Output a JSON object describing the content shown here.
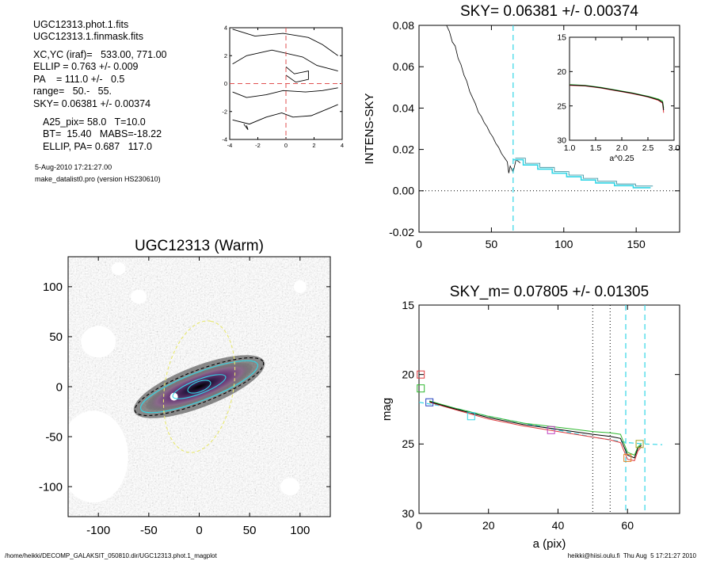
{
  "info": {
    "lines": [
      "UGC12313.phot.1.fits",
      "UGC12313.1.finmask.fits",
      "XC,YC (iraf)=   533.00, 771.00",
      "ELLIP = 0.763 +/- 0.009",
      "PA    = 111.0 +/-   0.5",
      "range=   50.-   55.",
      "SKY= 0.06381 +/- 0.00374"
    ],
    "lines2": [
      "A25_pix= 58.0   T=10.0",
      "BT=  15.40   MABS=-18.22",
      "ELLIP, PA= 0.687   117.0"
    ],
    "date": "5-Aug-2010 17:21:27.00",
    "program": "make_datalist0.pro (version HS230610)"
  },
  "footer": {
    "left": "/home/heikki/DECOMP_GALAKSIT_050810.dir/UGC12313.phot.1_magplot",
    "right": "heikki@hiisi.oulu.fi  Thu Aug  5 17:21:27 2010"
  },
  "colors": {
    "cyan": "#33d6e6",
    "red": "#e0393c",
    "green": "#2fb82f",
    "gray": "#808080",
    "dash_red": "#e05050"
  },
  "chart_data": [
    {
      "id": "contour",
      "type": "line",
      "xlim": [
        -4,
        4
      ],
      "ylim": [
        -4,
        4
      ],
      "xticks": [
        -4,
        -2,
        0,
        2,
        4
      ],
      "yticks": [
        -4,
        -2,
        0,
        2,
        4
      ],
      "tick_labels_x": [
        "-4",
        "-2",
        "0",
        "2",
        "4"
      ],
      "tick_labels_y": [
        "-4",
        "-2",
        "0",
        "2",
        "4"
      ],
      "contours": [
        [
          [
            -3.8,
            3.9
          ],
          [
            -2.2,
            3.4
          ],
          [
            -0.2,
            3.6
          ],
          [
            1.6,
            3.3
          ],
          [
            2.6,
            2.8
          ],
          [
            3.7,
            2.0
          ]
        ],
        [
          [
            -3.8,
            1.4
          ],
          [
            -2.8,
            2.0
          ],
          [
            -1.0,
            2.4
          ],
          [
            1.2,
            1.9
          ],
          [
            2.2,
            1.3
          ],
          [
            3.7,
            0.9
          ]
        ],
        [
          [
            0.0,
            1.2
          ],
          [
            0.6,
            0.7
          ],
          [
            1.6,
            0.9
          ],
          [
            1.6,
            0.3
          ],
          [
            0.7,
            0.1
          ],
          [
            0.0,
            0.6
          ]
        ],
        [
          [
            -3.8,
            -0.6
          ],
          [
            -2.8,
            -1.0
          ],
          [
            -1.4,
            -0.8
          ],
          [
            -0.2,
            -0.5
          ],
          [
            1.4,
            -0.6
          ],
          [
            2.6,
            -0.5
          ],
          [
            3.7,
            -0.3
          ]
        ],
        [
          [
            -3.8,
            -2.6
          ],
          [
            -2.6,
            -2.9
          ],
          [
            -1.4,
            -2.4
          ],
          [
            -0.3,
            -2.1
          ],
          [
            0.5,
            -2.4
          ],
          [
            1.8,
            -2.3
          ],
          [
            3.0,
            -1.8
          ],
          [
            3.7,
            -1.5
          ]
        ],
        [
          [
            -3.0,
            -2.9
          ],
          [
            -2.7,
            -3.3
          ],
          [
            -2.8,
            -3.0
          ]
        ]
      ]
    },
    {
      "id": "sky",
      "type": "line",
      "title": "SKY= 0.06381 +/- 0.00374",
      "ylabel": "INTENS-SKY",
      "xlim": [
        0,
        180
      ],
      "ylim": [
        -0.02,
        0.08
      ],
      "xticks": [
        0,
        50,
        100,
        150
      ],
      "yticks": [
        -0.02,
        0.0,
        0.02,
        0.04,
        0.06,
        0.08
      ],
      "tick_labels_x": [
        "0",
        "50",
        "100",
        "150"
      ],
      "tick_labels_y": [
        "-0.02",
        "0.00",
        "0.02",
        "0.04",
        "0.06",
        "0.08"
      ],
      "profile": [
        [
          19,
          0.08
        ],
        [
          21,
          0.077
        ],
        [
          23,
          0.072
        ],
        [
          25,
          0.07
        ],
        [
          27,
          0.064
        ],
        [
          29,
          0.061
        ],
        [
          31,
          0.056
        ],
        [
          33,
          0.053
        ],
        [
          35,
          0.048
        ],
        [
          37,
          0.045
        ],
        [
          39,
          0.042
        ],
        [
          41,
          0.038
        ],
        [
          43,
          0.036
        ],
        [
          45,
          0.033
        ],
        [
          47,
          0.031
        ],
        [
          49,
          0.028
        ],
        [
          51,
          0.026
        ],
        [
          53,
          0.023
        ],
        [
          55,
          0.021
        ],
        [
          57,
          0.018
        ],
        [
          59,
          0.016
        ],
        [
          61,
          0.014
        ],
        [
          62,
          0.0085
        ],
        [
          63,
          0.012
        ],
        [
          65,
          0.009
        ],
        [
          67,
          0.015
        ],
        [
          70,
          0.0135
        ]
      ],
      "steps": [
        [
          65,
          0.015
        ],
        [
          72,
          0.015
        ],
        [
          72,
          0.0125
        ],
        [
          82,
          0.0125
        ],
        [
          82,
          0.0105
        ],
        [
          92,
          0.0105
        ],
        [
          92,
          0.0085
        ],
        [
          102,
          0.0085
        ],
        [
          102,
          0.0068
        ],
        [
          112,
          0.0068
        ],
        [
          112,
          0.0052
        ],
        [
          122,
          0.0052
        ],
        [
          122,
          0.0038
        ],
        [
          135,
          0.0038
        ],
        [
          135,
          0.0025
        ],
        [
          148,
          0.0025
        ],
        [
          148,
          0.0015
        ],
        [
          160,
          0.0015
        ]
      ],
      "vline_x": 65
    },
    {
      "id": "inset",
      "type": "line",
      "xlabel": "a^0.25",
      "xlim": [
        1.0,
        3.0
      ],
      "ylim": [
        30,
        15
      ],
      "xticks": [
        1.0,
        1.5,
        2.0,
        2.5,
        3.0
      ],
      "yticks": [
        15,
        20,
        25,
        30
      ],
      "tick_labels_x": [
        "1.0",
        "1.5",
        "2.0",
        "2.5",
        "3.0"
      ],
      "tick_labels_y": [
        "15",
        "20",
        "25",
        "30"
      ],
      "series": [
        {
          "color": "green",
          "values": [
            [
              1.0,
              21.9
            ],
            [
              1.3,
              22.0
            ],
            [
              1.6,
              22.3
            ],
            [
              1.9,
              22.7
            ],
            [
              2.2,
              23.1
            ],
            [
              2.5,
              23.6
            ],
            [
              2.7,
              24.0
            ],
            [
              2.78,
              24.3
            ],
            [
              2.8,
              25.3
            ]
          ]
        },
        {
          "color": "red",
          "values": [
            [
              1.0,
              22.0
            ],
            [
              1.3,
              22.1
            ],
            [
              1.6,
              22.4
            ],
            [
              1.9,
              22.8
            ],
            [
              2.2,
              23.2
            ],
            [
              2.5,
              23.7
            ],
            [
              2.7,
              24.2
            ],
            [
              2.78,
              24.6
            ],
            [
              2.8,
              26.0
            ]
          ]
        },
        {
          "color": "black",
          "values": [
            [
              1.0,
              21.95
            ],
            [
              1.3,
              22.05
            ],
            [
              1.6,
              22.35
            ],
            [
              1.9,
              22.75
            ],
            [
              2.2,
              23.15
            ],
            [
              2.5,
              23.65
            ],
            [
              2.7,
              24.1
            ],
            [
              2.78,
              24.5
            ],
            [
              2.8,
              25.6
            ]
          ]
        }
      ]
    },
    {
      "id": "image",
      "type": "heatmap",
      "title": "UGC12313 (Warm)",
      "xlim": [
        -130,
        130
      ],
      "ylim": [
        -130,
        130
      ],
      "xticks": [
        -100,
        -50,
        0,
        50,
        100
      ],
      "yticks": [
        -100,
        -50,
        0,
        50,
        100
      ],
      "tick_labels_x": [
        "-100",
        "-50",
        "0",
        "50",
        "100"
      ],
      "tick_labels_y": [
        "-100",
        "-50",
        "0",
        "50",
        "100"
      ],
      "ellipses": [
        {
          "a": 68,
          "b": 16,
          "pa": 111,
          "color": "black",
          "dash": true
        },
        {
          "a": 62,
          "b": 14,
          "pa": 111,
          "color": "cyan",
          "dash": false
        },
        {
          "a": 28,
          "b": 7,
          "pa": 111,
          "color": "cyan",
          "dash": false
        },
        {
          "a": 12,
          "b": 5,
          "pa": 111,
          "color": "cyan",
          "dash": false
        },
        {
          "a": 66,
          "b": 34,
          "pa": 170,
          "color": "yellow",
          "dash": true
        }
      ]
    },
    {
      "id": "mag",
      "type": "line",
      "title": "SKY_m=  0.07805 +/- 0.01305",
      "xlabel": "a (pix)",
      "ylabel": "mag",
      "xlim": [
        0,
        75
      ],
      "ylim": [
        30,
        15
      ],
      "xticks": [
        0,
        20,
        40,
        60
      ],
      "yticks": [
        15,
        20,
        25,
        30
      ],
      "tick_labels_x": [
        "0",
        "20",
        "40",
        "60"
      ],
      "tick_labels_y": [
        "15",
        "20",
        "25",
        "30"
      ],
      "series": [
        {
          "color": "green",
          "values": [
            [
              3,
              21.9
            ],
            [
              10,
              22.4
            ],
            [
              20,
              23.0
            ],
            [
              30,
              23.5
            ],
            [
              40,
              23.8
            ],
            [
              50,
              24.1
            ],
            [
              55,
              24.2
            ],
            [
              58,
              24.3
            ],
            [
              60,
              25.6
            ],
            [
              62,
              25.8
            ],
            [
              63,
              25.2
            ],
            [
              64,
              25.0
            ]
          ]
        },
        {
          "color": "red",
          "values": [
            [
              3,
              22.0
            ],
            [
              10,
              22.5
            ],
            [
              20,
              23.2
            ],
            [
              30,
              23.7
            ],
            [
              40,
              24.1
            ],
            [
              50,
              24.5
            ],
            [
              55,
              24.7
            ],
            [
              58,
              24.9
            ],
            [
              60,
              26.1
            ],
            [
              62,
              26.2
            ],
            [
              63,
              25.5
            ],
            [
              64,
              25.2
            ]
          ]
        },
        {
          "color": "black",
          "values": [
            [
              3,
              21.95
            ],
            [
              10,
              22.45
            ],
            [
              20,
              23.1
            ],
            [
              30,
              23.6
            ],
            [
              40,
              23.95
            ],
            [
              50,
              24.3
            ],
            [
              55,
              24.45
            ],
            [
              58,
              24.6
            ],
            [
              60,
              25.8
            ],
            [
              62,
              26.0
            ],
            [
              63,
              25.3
            ],
            [
              64,
              25.1
            ]
          ]
        }
      ],
      "model": [
        [
          0,
          22.0
        ],
        [
          10,
          22.4
        ],
        [
          20,
          23.0
        ],
        [
          30,
          23.5
        ],
        [
          40,
          24.0
        ],
        [
          50,
          24.5
        ],
        [
          55,
          24.7
        ],
        [
          60,
          24.9
        ],
        [
          65,
          25.0
        ],
        [
          70,
          25.05
        ]
      ],
      "markers": [
        {
          "x": 0.5,
          "y": 20.0,
          "color": "red"
        },
        {
          "x": 0.5,
          "y": 21.0,
          "color": "green"
        },
        {
          "x": 3,
          "y": 22.0,
          "color": "blue"
        },
        {
          "x": 15,
          "y": 23.0,
          "color": "cyan"
        },
        {
          "x": 38,
          "y": 24.0,
          "color": "magenta"
        },
        {
          "x": 60,
          "y": 26.0,
          "color": "orange"
        },
        {
          "x": 63.5,
          "y": 25.0,
          "color": "olive"
        }
      ],
      "vlines_dotted": [
        50,
        55
      ],
      "vlines_dashed": [
        59.5,
        65
      ]
    }
  ]
}
